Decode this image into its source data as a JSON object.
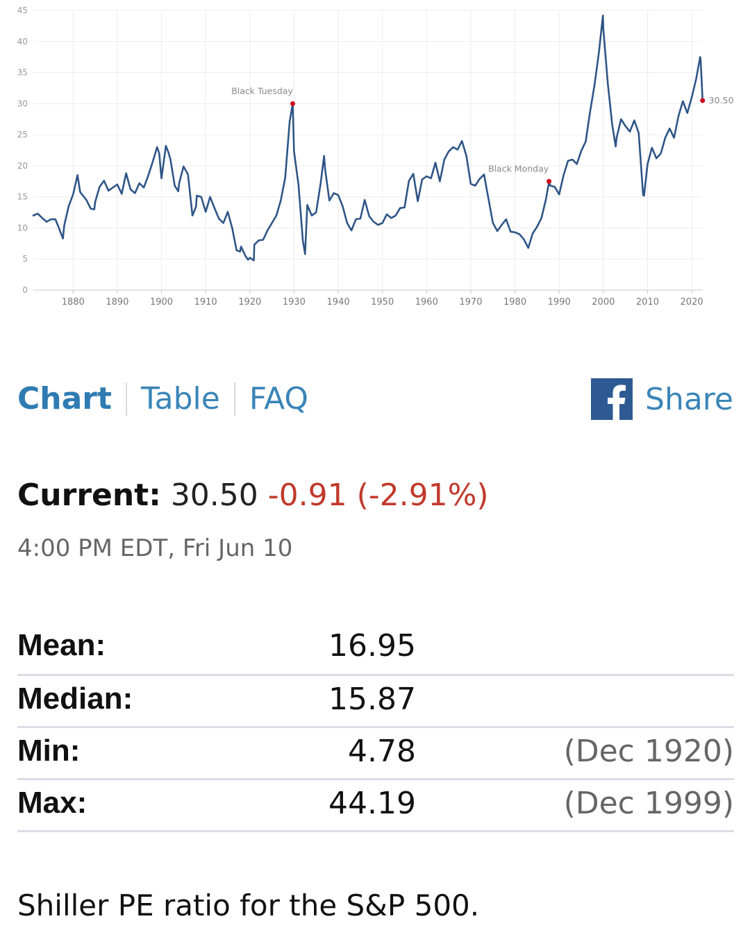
{
  "chart_data": {
    "type": "line",
    "title": "",
    "xlabel": "",
    "ylabel": "",
    "xlim": [
      1871,
      2022.5
    ],
    "ylim": [
      0,
      45
    ],
    "x_ticks": [
      "1880",
      "1890",
      "1900",
      "1910",
      "1920",
      "1930",
      "1940",
      "1950",
      "1960",
      "1970",
      "1980",
      "1990",
      "2000",
      "2010",
      "2020"
    ],
    "y_ticks": [
      "0",
      "5",
      "10",
      "15",
      "20",
      "25",
      "30",
      "35",
      "40",
      "45"
    ],
    "grid": true,
    "line_color": "#2e5586",
    "marker_color": "#d0021b",
    "series": [
      {
        "x": [
          1871,
          1872,
          1873,
          1874,
          1875,
          1876,
          1877,
          1877.7,
          1878,
          1879,
          1880,
          1881,
          1881.6,
          1882,
          1883,
          1884,
          1884.8,
          1885,
          1886,
          1887,
          1888,
          1889,
          1890,
          1891,
          1892,
          1893,
          1894,
          1895,
          1896,
          1897,
          1898,
          1899,
          1899.5,
          1900,
          1900.5,
          1901,
          1901.5,
          1902,
          1903,
          1903.8,
          1904,
          1905,
          1906,
          1907,
          1907.8,
          1908,
          1909,
          1910,
          1911,
          1912,
          1913,
          1914,
          1915,
          1916,
          1917,
          1917.8,
          1918,
          1919,
          1919.6,
          1920,
          1920.9,
          1921,
          1922,
          1923,
          1924,
          1925,
          1926,
          1927,
          1928,
          1929,
          1929.7,
          1930,
          1931,
          1932,
          1932.5,
          1933,
          1934,
          1935,
          1936,
          1936.8,
          1937,
          1938,
          1939,
          1940,
          1941,
          1942,
          1943,
          1944,
          1945,
          1946,
          1947,
          1948,
          1949,
          1950,
          1951,
          1952,
          1953,
          1954,
          1955,
          1956,
          1957,
          1958,
          1959,
          1960,
          1961,
          1962,
          1963,
          1964,
          1965,
          1966,
          1967,
          1968,
          1969,
          1970,
          1971,
          1972,
          1973,
          1974,
          1975,
          1976,
          1977,
          1978,
          1979,
          1980,
          1981,
          1982,
          1983,
          1984,
          1985,
          1986,
          1987,
          1987.7,
          1988,
          1989,
          1990,
          1991,
          1992,
          1993,
          1994,
          1995,
          1996,
          1997,
          1998,
          1999,
          1999.9,
          2000,
          2001,
          2002,
          2002.8,
          2003,
          2004,
          2005,
          2006,
          2007,
          2008,
          2009,
          2009.2,
          2010,
          2011,
          2012,
          2013,
          2014,
          2015,
          2016,
          2017,
          2018,
          2019,
          2020,
          2021,
          2021.9,
          2022,
          2022.3,
          2022.45
        ],
        "y": [
          12.0,
          12.3,
          11.6,
          11.0,
          11.4,
          11.4,
          9.6,
          8.3,
          10.4,
          13.5,
          15.4,
          18.5,
          15.8,
          15.4,
          14.5,
          13.1,
          13.0,
          14.2,
          16.6,
          17.6,
          16.0,
          16.5,
          17.0,
          15.5,
          18.8,
          16.2,
          15.6,
          17.2,
          16.5,
          18.4,
          20.6,
          23.0,
          22.0,
          18.0,
          20.6,
          23.2,
          22.3,
          21.1,
          16.8,
          15.9,
          17.2,
          19.9,
          18.6,
          12.0,
          13.4,
          15.2,
          15.0,
          12.6,
          15.0,
          13.2,
          11.5,
          10.8,
          12.6,
          10.0,
          6.4,
          6.2,
          7.0,
          5.5,
          4.9,
          5.2,
          4.78,
          7.3,
          8.0,
          8.1,
          9.6,
          10.8,
          12.0,
          14.4,
          18.1,
          27.1,
          30.0,
          22.3,
          17.0,
          8.0,
          5.8,
          13.7,
          12.0,
          12.5,
          17.1,
          21.6,
          19.6,
          14.4,
          15.6,
          15.3,
          13.5,
          10.8,
          9.6,
          11.4,
          11.5,
          14.5,
          11.9,
          11.0,
          10.5,
          10.8,
          12.2,
          11.6,
          12.0,
          13.2,
          13.3,
          17.6,
          18.7,
          14.3,
          17.8,
          18.3,
          18.0,
          20.5,
          17.5,
          21.0,
          22.3,
          23.0,
          22.6,
          24.0,
          21.6,
          17.1,
          16.8,
          17.9,
          18.6,
          14.7,
          10.8,
          9.5,
          10.5,
          11.4,
          9.4,
          9.3,
          9.0,
          8.2,
          6.8,
          9.1,
          10.2,
          11.6,
          14.6,
          17.4,
          16.8,
          16.6,
          15.4,
          18.5,
          20.8,
          21.0,
          20.3,
          22.4,
          23.9,
          28.7,
          33.0,
          38.3,
          44.19,
          42.0,
          33.3,
          26.6,
          23.1,
          24.5,
          27.5,
          26.4,
          25.5,
          27.3,
          25.3,
          15.3,
          15.2,
          20.3,
          22.9,
          21.2,
          22.0,
          24.5,
          26.0,
          24.5,
          28.0,
          30.4,
          28.5,
          31.0,
          34.0,
          37.5,
          37.2,
          33.0,
          30.5
        ]
      }
    ],
    "annotations": [
      {
        "text": "Black Tuesday",
        "x": 1929.7,
        "y": 30.0
      },
      {
        "text": "Black Monday",
        "x": 1987.7,
        "y": 17.5
      }
    ],
    "end_label": "30.50"
  },
  "tabs": [
    "Chart",
    "Table",
    "FAQ"
  ],
  "share_label": "Share",
  "icons": {
    "share": "facebook-icon"
  },
  "current": {
    "label": "Current:",
    "value": "30.50",
    "change": "-0.91 (-2.91%)"
  },
  "timestamp": "4:00 PM EDT, Fri Jun 10",
  "stats": [
    {
      "label": "Mean:",
      "value": "16.95",
      "date": ""
    },
    {
      "label": "Median:",
      "value": "15.87",
      "date": ""
    },
    {
      "label": "Min:",
      "value": "4.78",
      "date": "(Dec 1920)"
    },
    {
      "label": "Max:",
      "value": "44.19",
      "date": "(Dec 1999)"
    }
  ],
  "description": "Shiller PE ratio for the S&P 500."
}
